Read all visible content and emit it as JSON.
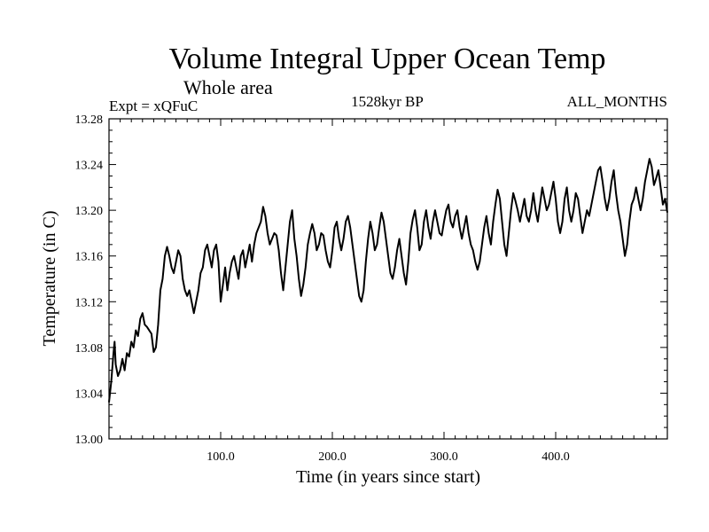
{
  "chart_data": {
    "type": "line",
    "title": "Volume Integral Upper Ocean Temp",
    "subtitle": "Whole area",
    "experiment_label": "Expt = xQFuC",
    "period_label": "1528kyr BP",
    "season_label": "ALL_MONTHS",
    "xlabel": "Time (in years since start)",
    "ylabel": "Temperature (in C)",
    "xlim": [
      0,
      500
    ],
    "ylim": [
      13.0,
      13.28
    ],
    "grid": false,
    "x_ticks": [
      {
        "value": 100,
        "label": "100.0"
      },
      {
        "value": 200,
        "label": "200.0"
      },
      {
        "value": 300,
        "label": "300.0"
      },
      {
        "value": 400,
        "label": "400.0"
      }
    ],
    "y_ticks": [
      {
        "value": 13.0,
        "label": "13.00"
      },
      {
        "value": 13.04,
        "label": "13.04"
      },
      {
        "value": 13.08,
        "label": "13.08"
      },
      {
        "value": 13.12,
        "label": "13.12"
      },
      {
        "value": 13.16,
        "label": "13.16"
      },
      {
        "value": 13.2,
        "label": "13.20"
      },
      {
        "value": 13.24,
        "label": "13.24"
      },
      {
        "value": 13.28,
        "label": "13.28"
      }
    ],
    "series": [
      {
        "name": "Temperature",
        "color": "#000000",
        "points": [
          [
            0,
            13.032
          ],
          [
            2,
            13.05
          ],
          [
            4,
            13.075
          ],
          [
            5,
            13.085
          ],
          [
            6,
            13.065
          ],
          [
            8,
            13.055
          ],
          [
            10,
            13.06
          ],
          [
            12,
            13.07
          ],
          [
            14,
            13.06
          ],
          [
            16,
            13.075
          ],
          [
            18,
            13.072
          ],
          [
            20,
            13.085
          ],
          [
            22,
            13.08
          ],
          [
            24,
            13.095
          ],
          [
            26,
            13.09
          ],
          [
            28,
            13.105
          ],
          [
            30,
            13.11
          ],
          [
            32,
            13.1
          ],
          [
            34,
            13.098
          ],
          [
            36,
            13.095
          ],
          [
            38,
            13.092
          ],
          [
            40,
            13.076
          ],
          [
            42,
            13.08
          ],
          [
            44,
            13.1
          ],
          [
            46,
            13.13
          ],
          [
            48,
            13.14
          ],
          [
            50,
            13.16
          ],
          [
            52,
            13.168
          ],
          [
            54,
            13.16
          ],
          [
            56,
            13.15
          ],
          [
            58,
            13.145
          ],
          [
            60,
            13.155
          ],
          [
            62,
            13.165
          ],
          [
            64,
            13.16
          ],
          [
            66,
            13.14
          ],
          [
            68,
            13.13
          ],
          [
            70,
            13.125
          ],
          [
            72,
            13.13
          ],
          [
            74,
            13.12
          ],
          [
            76,
            13.11
          ],
          [
            78,
            13.12
          ],
          [
            80,
            13.13
          ],
          [
            82,
            13.145
          ],
          [
            84,
            13.15
          ],
          [
            86,
            13.165
          ],
          [
            88,
            13.17
          ],
          [
            90,
            13.16
          ],
          [
            92,
            13.15
          ],
          [
            94,
            13.165
          ],
          [
            96,
            13.17
          ],
          [
            98,
            13.155
          ],
          [
            100,
            13.12
          ],
          [
            102,
            13.135
          ],
          [
            104,
            13.15
          ],
          [
            106,
            13.13
          ],
          [
            108,
            13.145
          ],
          [
            110,
            13.155
          ],
          [
            112,
            13.16
          ],
          [
            114,
            13.15
          ],
          [
            116,
            13.14
          ],
          [
            118,
            13.16
          ],
          [
            120,
            13.165
          ],
          [
            122,
            13.15
          ],
          [
            124,
            13.16
          ],
          [
            126,
            13.17
          ],
          [
            128,
            13.155
          ],
          [
            130,
            13.17
          ],
          [
            132,
            13.18
          ],
          [
            134,
            13.185
          ],
          [
            136,
            13.19
          ],
          [
            138,
            13.203
          ],
          [
            140,
            13.195
          ],
          [
            142,
            13.18
          ],
          [
            144,
            13.17
          ],
          [
            146,
            13.175
          ],
          [
            148,
            13.18
          ],
          [
            150,
            13.178
          ],
          [
            152,
            13.165
          ],
          [
            154,
            13.145
          ],
          [
            156,
            13.13
          ],
          [
            158,
            13.15
          ],
          [
            160,
            13.17
          ],
          [
            162,
            13.19
          ],
          [
            164,
            13.2
          ],
          [
            166,
            13.175
          ],
          [
            168,
            13.16
          ],
          [
            170,
            13.14
          ],
          [
            172,
            13.125
          ],
          [
            174,
            13.135
          ],
          [
            176,
            13.15
          ],
          [
            178,
            13.17
          ],
          [
            180,
            13.18
          ],
          [
            182,
            13.188
          ],
          [
            184,
            13.18
          ],
          [
            186,
            13.165
          ],
          [
            188,
            13.17
          ],
          [
            190,
            13.18
          ],
          [
            192,
            13.178
          ],
          [
            194,
            13.165
          ],
          [
            196,
            13.155
          ],
          [
            198,
            13.15
          ],
          [
            200,
            13.165
          ],
          [
            202,
            13.185
          ],
          [
            204,
            13.19
          ],
          [
            206,
            13.175
          ],
          [
            208,
            13.165
          ],
          [
            210,
            13.175
          ],
          [
            212,
            13.19
          ],
          [
            214,
            13.195
          ],
          [
            216,
            13.185
          ],
          [
            218,
            13.17
          ],
          [
            220,
            13.155
          ],
          [
            222,
            13.14
          ],
          [
            224,
            13.125
          ],
          [
            226,
            13.12
          ],
          [
            228,
            13.13
          ],
          [
            230,
            13.155
          ],
          [
            232,
            13.175
          ],
          [
            234,
            13.19
          ],
          [
            236,
            13.18
          ],
          [
            238,
            13.165
          ],
          [
            240,
            13.17
          ],
          [
            242,
            13.185
          ],
          [
            244,
            13.198
          ],
          [
            246,
            13.19
          ],
          [
            248,
            13.175
          ],
          [
            250,
            13.16
          ],
          [
            252,
            13.145
          ],
          [
            254,
            13.14
          ],
          [
            256,
            13.15
          ],
          [
            258,
            13.165
          ],
          [
            260,
            13.175
          ],
          [
            262,
            13.16
          ],
          [
            264,
            13.145
          ],
          [
            266,
            13.135
          ],
          [
            268,
            13.155
          ],
          [
            270,
            13.18
          ],
          [
            272,
            13.192
          ],
          [
            274,
            13.2
          ],
          [
            276,
            13.185
          ],
          [
            278,
            13.165
          ],
          [
            280,
            13.17
          ],
          [
            282,
            13.19
          ],
          [
            284,
            13.2
          ],
          [
            286,
            13.185
          ],
          [
            288,
            13.175
          ],
          [
            290,
            13.19
          ],
          [
            292,
            13.2
          ],
          [
            294,
            13.19
          ],
          [
            296,
            13.18
          ],
          [
            298,
            13.178
          ],
          [
            300,
            13.19
          ],
          [
            302,
            13.2
          ],
          [
            304,
            13.205
          ],
          [
            306,
            13.19
          ],
          [
            308,
            13.185
          ],
          [
            310,
            13.195
          ],
          [
            312,
            13.2
          ],
          [
            314,
            13.185
          ],
          [
            316,
            13.175
          ],
          [
            318,
            13.185
          ],
          [
            320,
            13.195
          ],
          [
            322,
            13.18
          ],
          [
            324,
            13.17
          ],
          [
            326,
            13.165
          ],
          [
            328,
            13.155
          ],
          [
            330,
            13.148
          ],
          [
            332,
            13.155
          ],
          [
            334,
            13.17
          ],
          [
            336,
            13.185
          ],
          [
            338,
            13.195
          ],
          [
            340,
            13.18
          ],
          [
            342,
            13.17
          ],
          [
            344,
            13.19
          ],
          [
            346,
            13.205
          ],
          [
            348,
            13.218
          ],
          [
            350,
            13.21
          ],
          [
            352,
            13.19
          ],
          [
            354,
            13.17
          ],
          [
            356,
            13.16
          ],
          [
            358,
            13.18
          ],
          [
            360,
            13.2
          ],
          [
            362,
            13.215
          ],
          [
            364,
            13.208
          ],
          [
            366,
            13.2
          ],
          [
            368,
            13.19
          ],
          [
            370,
            13.2
          ],
          [
            372,
            13.21
          ],
          [
            374,
            13.195
          ],
          [
            376,
            13.19
          ],
          [
            378,
            13.2
          ],
          [
            380,
            13.215
          ],
          [
            382,
            13.2
          ],
          [
            384,
            13.19
          ],
          [
            386,
            13.205
          ],
          [
            388,
            13.22
          ],
          [
            390,
            13.21
          ],
          [
            392,
            13.2
          ],
          [
            394,
            13.205
          ],
          [
            396,
            13.215
          ],
          [
            398,
            13.225
          ],
          [
            400,
            13.21
          ],
          [
            402,
            13.19
          ],
          [
            404,
            13.18
          ],
          [
            406,
            13.19
          ],
          [
            408,
            13.21
          ],
          [
            410,
            13.22
          ],
          [
            412,
            13.2
          ],
          [
            414,
            13.19
          ],
          [
            416,
            13.2
          ],
          [
            418,
            13.215
          ],
          [
            420,
            13.21
          ],
          [
            422,
            13.195
          ],
          [
            424,
            13.18
          ],
          [
            426,
            13.19
          ],
          [
            428,
            13.2
          ],
          [
            430,
            13.195
          ],
          [
            432,
            13.205
          ],
          [
            434,
            13.215
          ],
          [
            436,
            13.225
          ],
          [
            438,
            13.235
          ],
          [
            440,
            13.238
          ],
          [
            442,
            13.225
          ],
          [
            444,
            13.21
          ],
          [
            446,
            13.2
          ],
          [
            448,
            13.21
          ],
          [
            450,
            13.225
          ],
          [
            452,
            13.235
          ],
          [
            454,
            13.215
          ],
          [
            456,
            13.2
          ],
          [
            458,
            13.19
          ],
          [
            460,
            13.175
          ],
          [
            462,
            13.16
          ],
          [
            464,
            13.17
          ],
          [
            466,
            13.19
          ],
          [
            468,
            13.205
          ],
          [
            470,
            13.21
          ],
          [
            472,
            13.22
          ],
          [
            474,
            13.21
          ],
          [
            476,
            13.2
          ],
          [
            478,
            13.21
          ],
          [
            480,
            13.225
          ],
          [
            482,
            13.235
          ],
          [
            484,
            13.245
          ],
          [
            486,
            13.238
          ],
          [
            488,
            13.222
          ],
          [
            490,
            13.228
          ],
          [
            492,
            13.235
          ],
          [
            494,
            13.22
          ],
          [
            496,
            13.205
          ],
          [
            498,
            13.21
          ],
          [
            500,
            13.198
          ]
        ]
      }
    ]
  }
}
